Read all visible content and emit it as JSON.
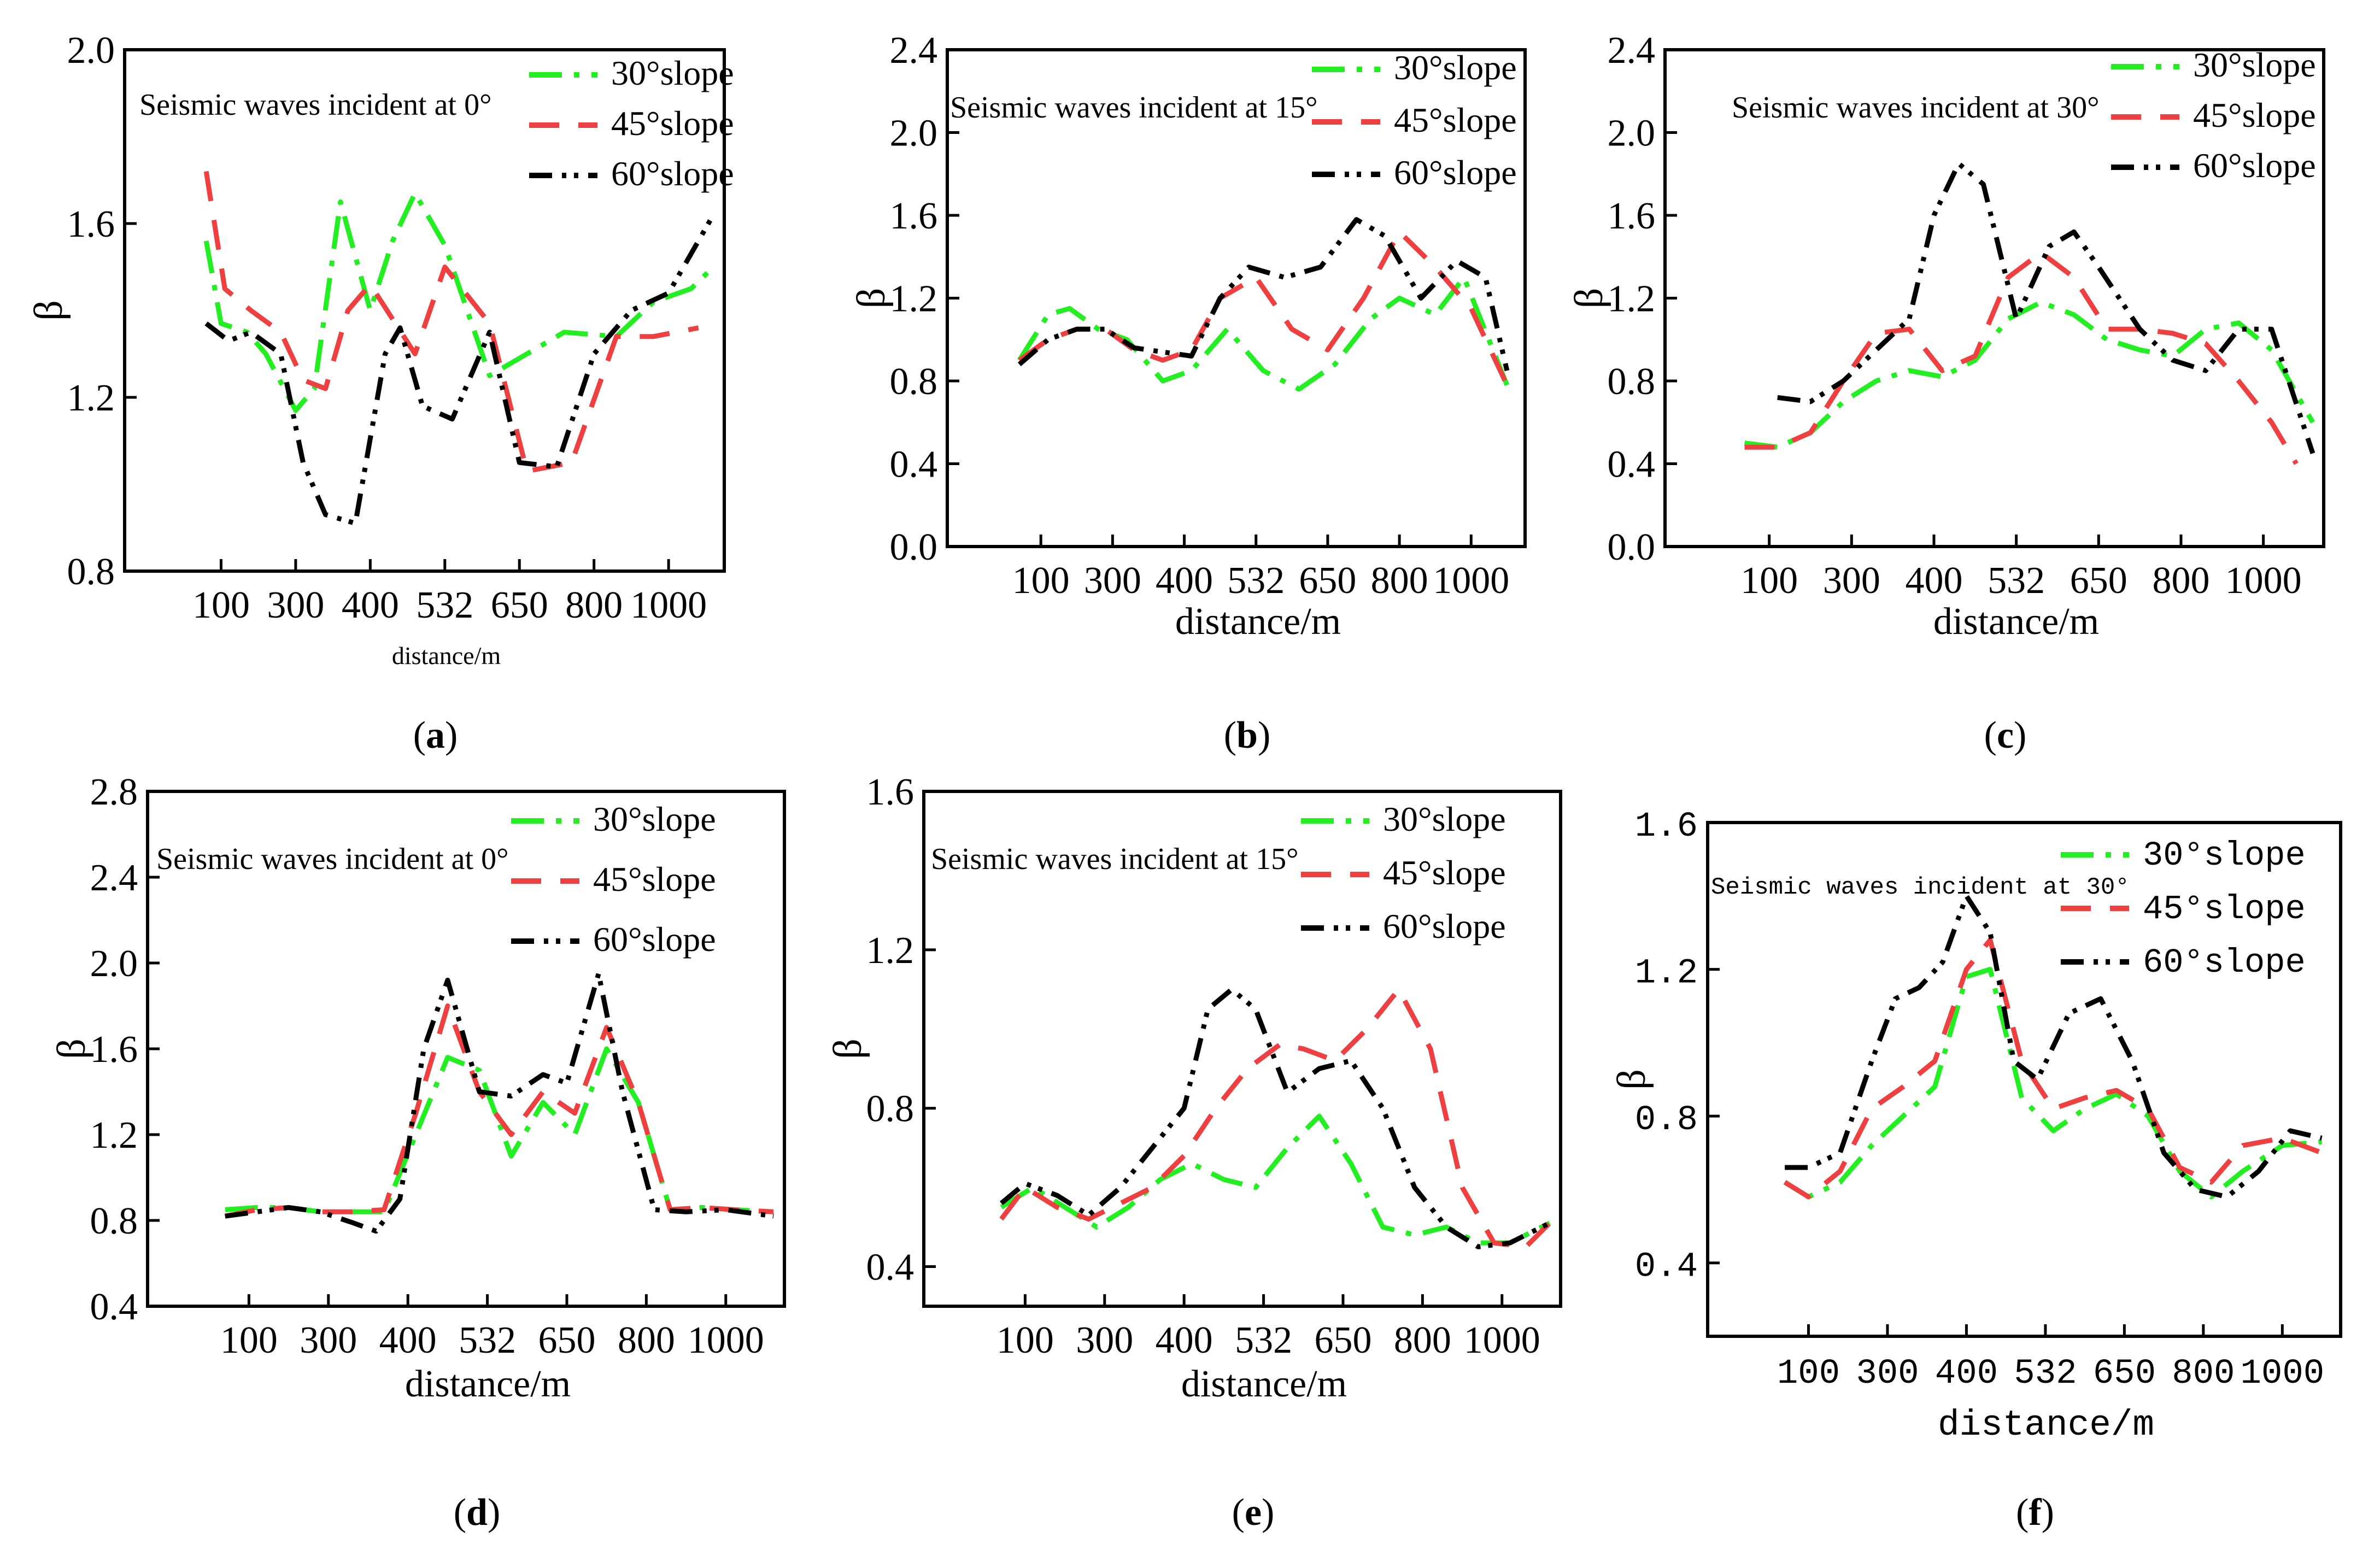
{
  "colors": {
    "s30": "#22ee22",
    "s45": "#ee4040",
    "s60": "#000000"
  },
  "chart_data": [
    {
      "type": "line",
      "title": "Seismic waves incident at 0°",
      "xlabel": "distance/m",
      "ylabel": "β",
      "caption_letter": "a",
      "categories": [
        "100",
        "300",
        "400",
        "532",
        "650",
        "800",
        "1000"
      ],
      "yticks": [
        "0.8",
        "1.2",
        "1.6",
        "2.0"
      ],
      "ylim": [
        0.8,
        2.0
      ],
      "legend": [
        "30°slope",
        "45°slope",
        "60°slope"
      ],
      "series": [
        {
          "name": "30°slope",
          "x": [
            0.3,
            0.5,
            0.85,
            1.1,
            1.5,
            1.75,
            2.1,
            2.5,
            2.8,
            3.1,
            3.5,
            4.1,
            4.6,
            5.1,
            5.8,
            6.3,
            6.8,
            7.1
          ],
          "y": [
            1.56,
            1.37,
            1.35,
            1.3,
            1.17,
            1.22,
            1.65,
            1.4,
            1.56,
            1.67,
            1.55,
            1.25,
            1.3,
            1.35,
            1.34,
            1.42,
            1.45,
            1.5
          ]
        },
        {
          "name": "45°slope",
          "x": [
            0.3,
            0.55,
            0.9,
            1.3,
            1.6,
            1.9,
            2.2,
            2.5,
            2.8,
            3.1,
            3.5,
            4.1,
            4.6,
            5.2,
            5.8,
            6.3,
            6.9
          ],
          "y": [
            1.72,
            1.45,
            1.4,
            1.35,
            1.24,
            1.22,
            1.4,
            1.46,
            1.38,
            1.3,
            1.5,
            1.37,
            1.03,
            1.05,
            1.34,
            1.34,
            1.36
          ]
        },
        {
          "name": "60°slope",
          "x": [
            0.3,
            0.6,
            0.9,
            1.3,
            1.6,
            1.9,
            2.3,
            2.7,
            2.9,
            3.2,
            3.6,
            4.1,
            4.5,
            5.0,
            5.5,
            6.0,
            6.5,
            7.1
          ],
          "y": [
            1.37,
            1.33,
            1.35,
            1.3,
            1.05,
            0.93,
            0.91,
            1.3,
            1.36,
            1.18,
            1.15,
            1.35,
            1.05,
            1.04,
            1.3,
            1.4,
            1.44,
            1.62
          ]
        }
      ]
    },
    {
      "type": "line",
      "title": "Seismic waves incident at 15°",
      "xlabel": "distance/m",
      "ylabel": "β",
      "caption_letter": "b",
      "categories": [
        "100",
        "300",
        "400",
        "532",
        "650",
        "800",
        "1000"
      ],
      "yticks": [
        "0.0",
        "0.4",
        "0.8",
        "1.2",
        "1.6",
        "2.0",
        "2.4"
      ],
      "ylim": [
        0.0,
        2.4
      ],
      "legend": [
        "30°slope",
        "45°slope",
        "60°slope"
      ],
      "series": [
        {
          "name": "30°slope",
          "x": [
            0.2,
            0.6,
            0.9,
            1.3,
            1.7,
            2.2,
            2.6,
            3.1,
            3.6,
            4.1,
            4.6,
            5.1,
            5.5,
            6.0,
            6.4,
            7.0
          ],
          "y": [
            0.9,
            1.12,
            1.15,
            1.05,
            1.0,
            0.8,
            0.85,
            1.05,
            0.85,
            0.76,
            0.88,
            1.1,
            1.2,
            1.12,
            1.3,
            0.78
          ]
        },
        {
          "name": "45°slope",
          "x": [
            0.2,
            0.6,
            1.0,
            1.4,
            1.8,
            2.2,
            2.6,
            3.0,
            3.5,
            4.0,
            4.5,
            5.0,
            5.5,
            6.0,
            6.5,
            7.0
          ],
          "y": [
            0.9,
            1.0,
            1.05,
            1.05,
            0.95,
            0.9,
            0.95,
            1.2,
            1.3,
            1.05,
            0.95,
            1.2,
            1.52,
            1.35,
            1.15,
            0.78
          ]
        },
        {
          "name": "60°slope",
          "x": [
            0.2,
            0.6,
            1.0,
            1.4,
            1.8,
            2.2,
            2.6,
            3.0,
            3.4,
            3.9,
            4.4,
            4.9,
            5.3,
            5.8,
            6.3,
            6.7,
            7.0
          ],
          "y": [
            0.88,
            1.0,
            1.05,
            1.05,
            0.96,
            0.94,
            0.92,
            1.2,
            1.35,
            1.3,
            1.35,
            1.58,
            1.5,
            1.2,
            1.38,
            1.3,
            0.85
          ]
        }
      ]
    },
    {
      "type": "line",
      "title": "Seismic waves incident at 30°",
      "xlabel": "distance/m",
      "ylabel": "β",
      "caption_letter": "c",
      "categories": [
        "100",
        "300",
        "400",
        "532",
        "650",
        "800",
        "1000"
      ],
      "yticks": [
        "0.0",
        "0.4",
        "0.8",
        "1.2",
        "1.6",
        "2.0",
        "2.4"
      ],
      "ylim": [
        0.0,
        2.4
      ],
      "legend": [
        "30°slope",
        "45°slope",
        "60°slope"
      ],
      "series": [
        {
          "name": "30°slope",
          "x": [
            0.2,
            0.6,
            1.0,
            1.4,
            1.8,
            2.2,
            2.6,
            3.0,
            3.4,
            3.8,
            4.2,
            4.6,
            5.0,
            5.4,
            5.8,
            6.2,
            6.6,
            7.1
          ],
          "y": [
            0.5,
            0.48,
            0.55,
            0.7,
            0.8,
            0.85,
            0.82,
            0.9,
            1.1,
            1.18,
            1.12,
            1.0,
            0.95,
            0.92,
            1.05,
            1.08,
            0.95,
            0.6
          ]
        },
        {
          "name": "45°slope",
          "x": [
            0.2,
            0.6,
            1.0,
            1.4,
            1.8,
            2.2,
            2.6,
            3.0,
            3.4,
            3.8,
            4.2,
            4.6,
            5.0,
            5.4,
            5.8,
            6.2,
            6.6,
            6.9
          ],
          "y": [
            0.48,
            0.48,
            0.55,
            0.8,
            1.03,
            1.05,
            0.85,
            0.92,
            1.3,
            1.42,
            1.3,
            1.05,
            1.05,
            1.03,
            0.98,
            0.8,
            0.6,
            0.4
          ]
        },
        {
          "name": "60°slope",
          "x": [
            0.6,
            1.0,
            1.4,
            1.8,
            2.2,
            2.5,
            2.8,
            3.1,
            3.5,
            3.9,
            4.2,
            4.5,
            5.0,
            5.4,
            5.8,
            6.2,
            6.6,
            7.1
          ],
          "y": [
            0.72,
            0.7,
            0.8,
            0.95,
            1.1,
            1.6,
            1.85,
            1.75,
            1.1,
            1.45,
            1.52,
            1.35,
            1.05,
            0.9,
            0.85,
            1.05,
            1.05,
            0.45
          ]
        }
      ]
    },
    {
      "type": "line",
      "title": "Seismic waves incident at 0°",
      "xlabel": "distance/m",
      "ylabel": "β",
      "caption_letter": "d",
      "categories": [
        "100",
        "300",
        "400",
        "532",
        "650",
        "800",
        "1000"
      ],
      "yticks": [
        "0.4",
        "0.8",
        "1.2",
        "1.6",
        "2.0",
        "2.4",
        "2.8"
      ],
      "ylim": [
        0.4,
        2.8
      ],
      "legend": [
        "30°slope",
        "45°slope",
        "60°slope"
      ],
      "series": [
        {
          "name": "30°slope",
          "x": [
            0.2,
            0.6,
            1.0,
            1.4,
            1.8,
            2.2,
            2.6,
            3.0,
            3.4,
            3.8,
            4.2,
            4.6,
            5.0,
            5.4,
            5.8,
            6.2,
            6.6,
            7.1
          ],
          "y": [
            0.85,
            0.86,
            0.86,
            0.84,
            0.84,
            0.84,
            1.2,
            1.56,
            1.5,
            1.1,
            1.35,
            1.2,
            1.6,
            1.35,
            0.85,
            0.86,
            0.85,
            0.84
          ]
        },
        {
          "name": "45°slope",
          "x": [
            0.2,
            0.6,
            1.0,
            1.4,
            1.8,
            2.2,
            2.6,
            3.0,
            3.4,
            3.8,
            4.2,
            4.6,
            5.0,
            5.4,
            5.8,
            6.2,
            6.6,
            7.1
          ],
          "y": [
            0.82,
            0.85,
            0.86,
            0.84,
            0.84,
            0.85,
            1.3,
            1.8,
            1.4,
            1.2,
            1.4,
            1.3,
            1.7,
            1.35,
            0.85,
            0.86,
            0.85,
            0.84
          ]
        },
        {
          "name": "60°slope",
          "x": [
            0.2,
            0.6,
            1.0,
            1.4,
            1.8,
            2.1,
            2.4,
            2.7,
            3.0,
            3.4,
            3.8,
            4.2,
            4.5,
            4.9,
            5.2,
            5.6,
            6.0,
            6.5,
            7.1
          ],
          "y": [
            0.82,
            0.84,
            0.86,
            0.84,
            0.79,
            0.75,
            0.9,
            1.6,
            1.92,
            1.4,
            1.38,
            1.48,
            1.44,
            1.95,
            1.4,
            0.85,
            0.84,
            0.85,
            0.82
          ]
        }
      ]
    },
    {
      "type": "line",
      "title": "Seismic waves incident at 15°",
      "xlabel": "distance/m",
      "ylabel": "β",
      "caption_letter": "e",
      "categories": [
        "100",
        "300",
        "400",
        "532",
        "650",
        "800",
        "1000"
      ],
      "yticks": [
        "0.4",
        "0.8",
        "1.2",
        "1.6"
      ],
      "ylim": [
        0.3,
        1.6
      ],
      "legend": [
        "30°slope",
        "45°slope",
        "60°slope"
      ],
      "series": [
        {
          "name": "30°slope",
          "x": [
            0.2,
            0.6,
            1.0,
            1.4,
            1.8,
            2.2,
            2.6,
            3.0,
            3.4,
            3.8,
            4.2,
            4.6,
            5.0,
            5.4,
            5.8,
            6.2,
            6.6,
            7.1
          ],
          "y": [
            0.55,
            0.6,
            0.55,
            0.5,
            0.55,
            0.62,
            0.66,
            0.62,
            0.6,
            0.7,
            0.78,
            0.66,
            0.5,
            0.48,
            0.5,
            0.46,
            0.46,
            0.51
          ]
        },
        {
          "name": "45°slope",
          "x": [
            0.2,
            0.5,
            0.9,
            1.3,
            1.7,
            2.1,
            2.5,
            2.9,
            3.3,
            3.7,
            4.0,
            4.4,
            4.8,
            5.2,
            5.6,
            6.0,
            6.4,
            6.8,
            7.1
          ],
          "y": [
            0.52,
            0.6,
            0.55,
            0.52,
            0.56,
            0.6,
            0.68,
            0.8,
            0.9,
            0.96,
            0.95,
            0.92,
            1.0,
            1.1,
            0.95,
            0.6,
            0.46,
            0.45,
            0.51
          ]
        },
        {
          "name": "60°slope",
          "x": [
            0.2,
            0.5,
            0.9,
            1.3,
            1.7,
            2.1,
            2.5,
            2.8,
            3.1,
            3.4,
            3.8,
            4.2,
            4.6,
            5.0,
            5.4,
            5.8,
            6.2,
            6.6,
            7.1
          ],
          "y": [
            0.56,
            0.61,
            0.58,
            0.53,
            0.6,
            0.7,
            0.8,
            1.05,
            1.1,
            1.05,
            0.84,
            0.9,
            0.92,
            0.8,
            0.6,
            0.5,
            0.45,
            0.46,
            0.51
          ]
        }
      ]
    },
    {
      "type": "line",
      "title": "Seismic waves incident at 30°",
      "xlabel": "distance/m",
      "ylabel": "β",
      "caption_letter": "f",
      "categories": [
        "100",
        "300",
        "400",
        "532",
        "650",
        "800",
        "1000"
      ],
      "yticks": [
        "0.4",
        "0.8",
        "1.2",
        "1.6"
      ],
      "ylim": [
        0.2,
        1.6
      ],
      "legend": [
        "30°slope",
        "45°slope",
        "60°slope"
      ],
      "series": [
        {
          "name": "30°slope",
          "x": [
            0.2,
            0.5,
            0.9,
            1.3,
            1.7,
            2.1,
            2.5,
            2.8,
            3.2,
            3.6,
            4.0,
            4.4,
            4.8,
            5.2,
            5.6,
            6.0,
            6.5,
            7.0
          ],
          "y": [
            0.62,
            0.58,
            0.62,
            0.72,
            0.8,
            0.88,
            1.18,
            1.2,
            0.85,
            0.76,
            0.82,
            0.86,
            0.8,
            0.65,
            0.58,
            0.65,
            0.72,
            0.73
          ]
        },
        {
          "name": "45°slope",
          "x": [
            0.2,
            0.5,
            0.9,
            1.3,
            1.7,
            2.1,
            2.5,
            2.8,
            3.2,
            3.6,
            4.0,
            4.4,
            4.8,
            5.2,
            5.6,
            6.0,
            6.5,
            7.0
          ],
          "y": [
            0.62,
            0.58,
            0.65,
            0.82,
            0.88,
            0.95,
            1.2,
            1.28,
            0.95,
            0.82,
            0.85,
            0.87,
            0.82,
            0.66,
            0.62,
            0.72,
            0.74,
            0.7
          ]
        },
        {
          "name": "60°slope",
          "x": [
            0.2,
            0.5,
            0.9,
            1.3,
            1.6,
            1.9,
            2.2,
            2.5,
            2.8,
            3.1,
            3.4,
            3.8,
            4.2,
            4.6,
            5.0,
            5.4,
            5.8,
            6.2,
            6.6,
            7.0
          ],
          "y": [
            0.66,
            0.66,
            0.7,
            0.95,
            1.12,
            1.15,
            1.22,
            1.4,
            1.3,
            0.95,
            0.9,
            1.08,
            1.12,
            0.95,
            0.7,
            0.6,
            0.58,
            0.65,
            0.76,
            0.74
          ]
        }
      ]
    }
  ]
}
